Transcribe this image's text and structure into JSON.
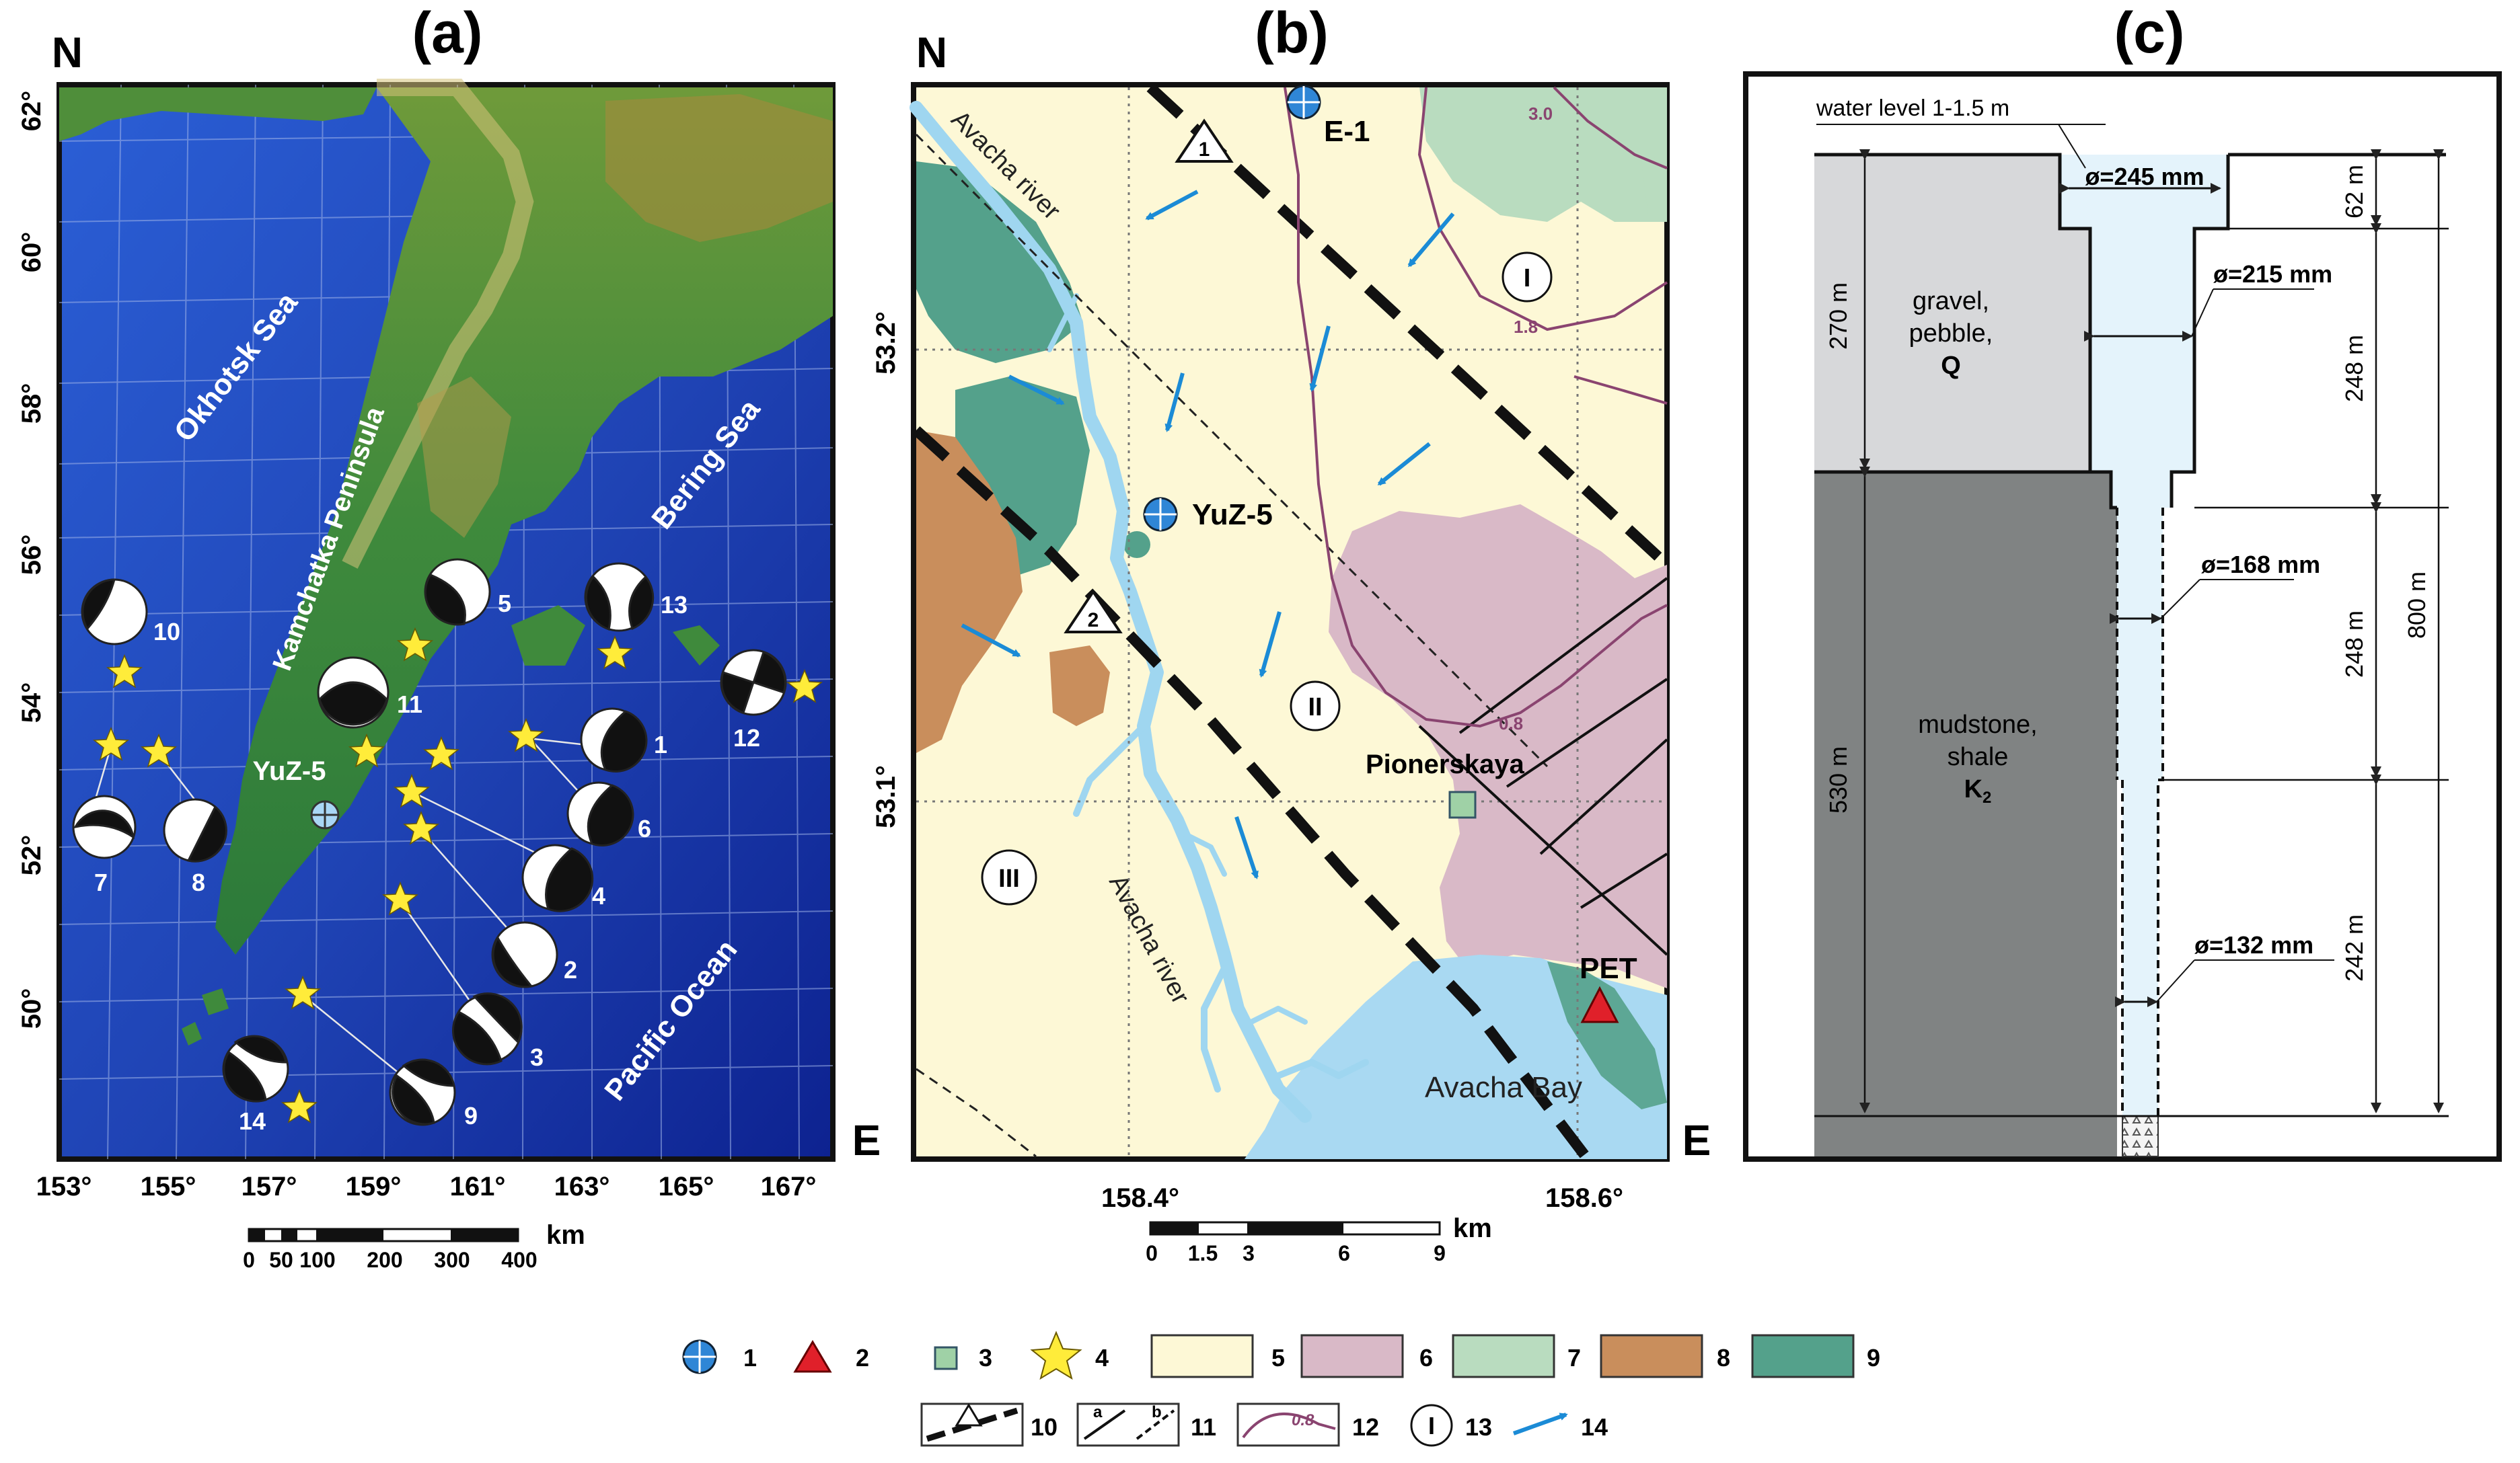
{
  "panel_a": {
    "label": "(a)",
    "north": "N",
    "east": "E",
    "lat_ticks": [
      "62°",
      "60°",
      "58°",
      "56°",
      "54°",
      "52°",
      "50°"
    ],
    "lon_ticks": [
      "153°",
      "155°",
      "157°",
      "159°",
      "161°",
      "163°",
      "165°",
      "167°"
    ],
    "labels": {
      "okhotsk": "Okhotsk Sea",
      "bering": "Bering Sea",
      "kamchatka": "Kamchatka Peninsula",
      "pacific": "Pacific Ocean",
      "station": "YuZ-5"
    },
    "earthquake_numbers": [
      "1",
      "2",
      "3",
      "4",
      "5",
      "6",
      "7",
      "8",
      "9",
      "10",
      "11",
      "12",
      "13",
      "14"
    ],
    "scale": {
      "ticks": [
        "0",
        "50",
        "100",
        "200",
        "300",
        "400"
      ],
      "unit": "km"
    }
  },
  "panel_b": {
    "label": "(b)",
    "north": "N",
    "east": "E",
    "lat_ticks": [
      "53.2°",
      "53.1°"
    ],
    "lon_ticks": [
      "158.4°",
      "158.6°"
    ],
    "labels": {
      "river1": "Avacha river",
      "river2": "Avacha river",
      "bay": "Avacha Bay",
      "well_e1": "E-1",
      "well_yuz5": "YuZ-5",
      "pionerskaya": "Pionerskaya",
      "pet": "PET",
      "zone1": "I",
      "zone2": "II",
      "zone3": "III",
      "fault1": "1",
      "fault2": "2",
      "iso_30": "3.0",
      "iso_18": "1.8",
      "iso_08": "0.8"
    },
    "scale": {
      "ticks": [
        "0",
        "1.5",
        "3",
        "6",
        "9"
      ],
      "unit": "km"
    }
  },
  "panel_c": {
    "label": "(c)",
    "water_level": "water level 1-1.5 m",
    "diameters": [
      "ø=245 mm",
      "ø=215 mm",
      "ø=168 mm",
      "ø=132 mm"
    ],
    "layer1": {
      "line1": "gravel,",
      "line2": "pebble,",
      "line3": "Q",
      "thickness": "270 m"
    },
    "layer2": {
      "line1": "mudstone,",
      "line2": "shale",
      "line3": "K",
      "sub": "2",
      "thickness": "530 m"
    },
    "depths": [
      "62 m",
      "248 m",
      "248 m",
      "242 m"
    ],
    "total": "800 m"
  },
  "legend": {
    "items": [
      "1",
      "2",
      "3",
      "4",
      "5",
      "6",
      "7",
      "8",
      "9",
      "10",
      "11",
      "12",
      "13",
      "14"
    ],
    "line_a": "a",
    "line_b": "b",
    "iso_label": "0.8",
    "zone_symbol": "I",
    "colors": {
      "well": "#2f86d6",
      "station": "#e0202a",
      "settlement": "#9fd1a6",
      "star": "#ffec3a",
      "c5": "#fdf8d6",
      "c6": "#d9b9c7",
      "c7": "#b9dcbf",
      "c8": "#c98e5c",
      "c9": "#54a18b",
      "arrow": "#1b8bd6"
    }
  }
}
